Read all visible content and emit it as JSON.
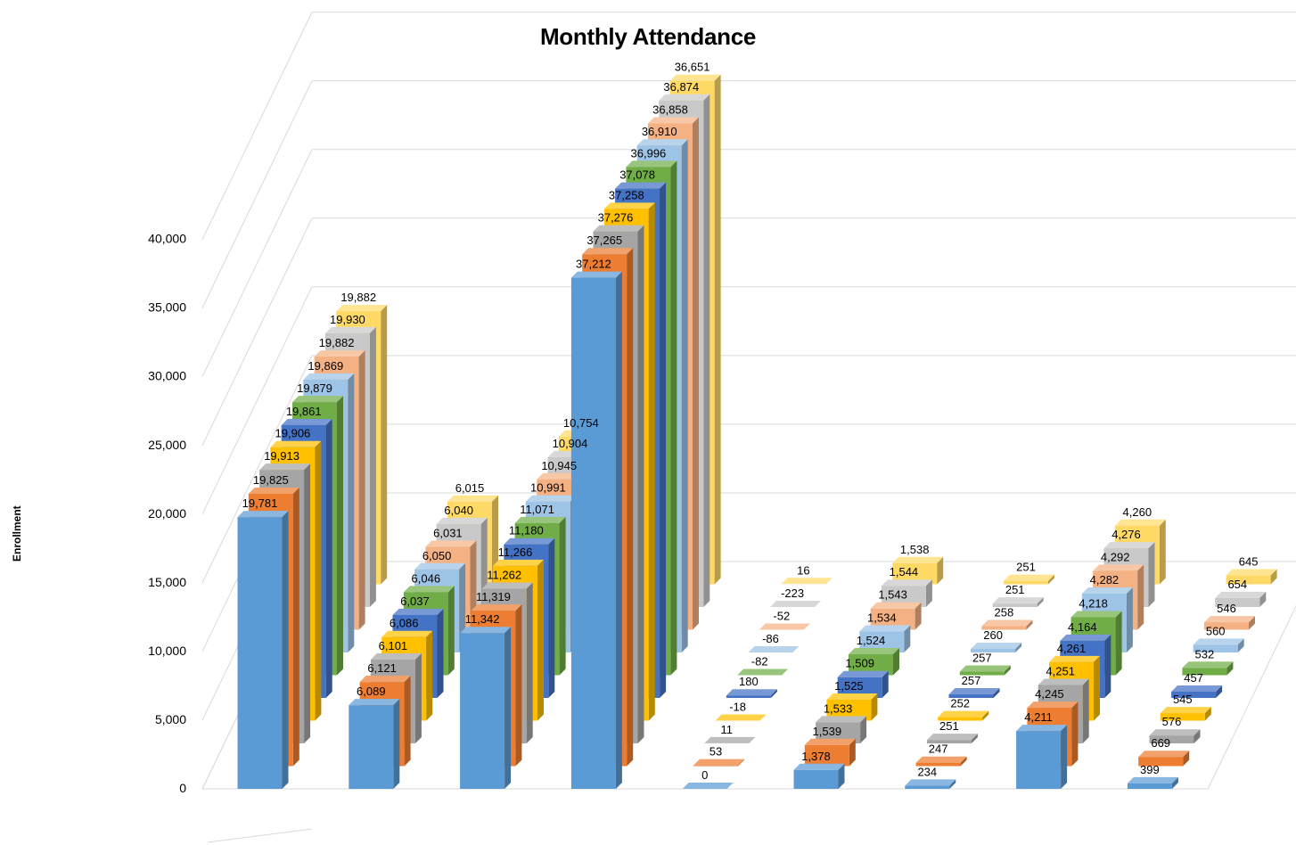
{
  "chart_data": {
    "type": "bar",
    "subtype": "3d-column-deep",
    "title": "Monthly Attendance",
    "xlabel": "",
    "ylabel": "Enrollment",
    "ylim": [
      0,
      40000
    ],
    "y_tick_labels": [
      "0",
      "5,000",
      "10,000",
      "15,000",
      "20,000",
      "25,000",
      "30,000",
      "35,000",
      "40,000"
    ],
    "grid": true,
    "legend": "none",
    "categories": [
      "",
      "",
      "",
      "",
      "",
      "",
      "",
      "",
      ""
    ],
    "series": [
      {
        "color": "#5B9BD5",
        "values": [
          19781,
          6089,
          11342,
          37212,
          0,
          1378,
          234,
          4211,
          399
        ],
        "labels": [
          "19,781",
          "6,089",
          "11,342",
          "37,212",
          "0",
          "1,378",
          "234",
          "4,211",
          "399"
        ]
      },
      {
        "color": "#ED7D31",
        "values": [
          19825,
          6121,
          11319,
          37265,
          53,
          1539,
          247,
          4245,
          669
        ],
        "labels": [
          "19,825",
          "6,121",
          "11,319",
          "37,265",
          "53",
          "1,539",
          "247",
          "4,245",
          "669"
        ]
      },
      {
        "color": "#A5A5A5",
        "values": [
          19913,
          6101,
          11262,
          37276,
          11,
          1533,
          251,
          4251,
          576
        ],
        "labels": [
          "19,913",
          "6,101",
          "11,262",
          "37,276",
          "11",
          "1,533",
          "251",
          "4,251",
          "576"
        ]
      },
      {
        "color": "#FFC000",
        "values": [
          19906,
          6086,
          11266,
          37258,
          -18,
          1525,
          252,
          4261,
          545
        ],
        "labels": [
          "19,906",
          "6,086",
          "11,266",
          "37,258",
          "-18",
          "1,525",
          "252",
          "4,261",
          "545"
        ]
      },
      {
        "color": "#4472C4",
        "values": [
          19861,
          6037,
          11180,
          37078,
          180,
          1509,
          257,
          4164,
          457
        ],
        "labels": [
          "19,861",
          "6,037",
          "11,180",
          "37,078",
          "180",
          "1,509",
          "257",
          "4,164",
          "457"
        ]
      },
      {
        "color": "#70AD47",
        "values": [
          19879,
          6046,
          11071,
          36996,
          -82,
          1524,
          257,
          4218,
          532
        ],
        "labels": [
          "19,879",
          "6,046",
          "11,071",
          "36,996",
          "-82",
          "1,524",
          "257",
          "4,218",
          "532"
        ]
      },
      {
        "color": "#9DC3E6",
        "values": [
          19869,
          6050,
          10991,
          36910,
          -86,
          1534,
          260,
          4282,
          560
        ],
        "labels": [
          "19,869",
          "6,050",
          "10,991",
          "36,910",
          "-86",
          "1,534",
          "260",
          "4,282",
          "560"
        ]
      },
      {
        "color": "#F4B183",
        "values": [
          19882,
          6031,
          10945,
          36858,
          -52,
          1543,
          258,
          4292,
          546
        ],
        "labels": [
          "19,882",
          "6,031",
          "10,945",
          "36,858",
          "-52",
          "1,543",
          "258",
          "4,292",
          "546"
        ]
      },
      {
        "color": "#C9C9C9",
        "values": [
          19930,
          6040,
          10904,
          36874,
          -223,
          1544,
          251,
          4276,
          654
        ],
        "labels": [
          "19,930",
          "6,040",
          "10,904",
          "36,874",
          "-223",
          "1,544",
          "251",
          "4,276",
          "654"
        ]
      },
      {
        "color": "#FFD966",
        "values": [
          19882,
          6015,
          10754,
          36651,
          16,
          1538,
          251,
          4260,
          645
        ],
        "labels": [
          "19,882",
          "6,015",
          "10,754",
          "36,651",
          "16",
          "1,538",
          "251",
          "4,260",
          "645"
        ]
      }
    ]
  }
}
